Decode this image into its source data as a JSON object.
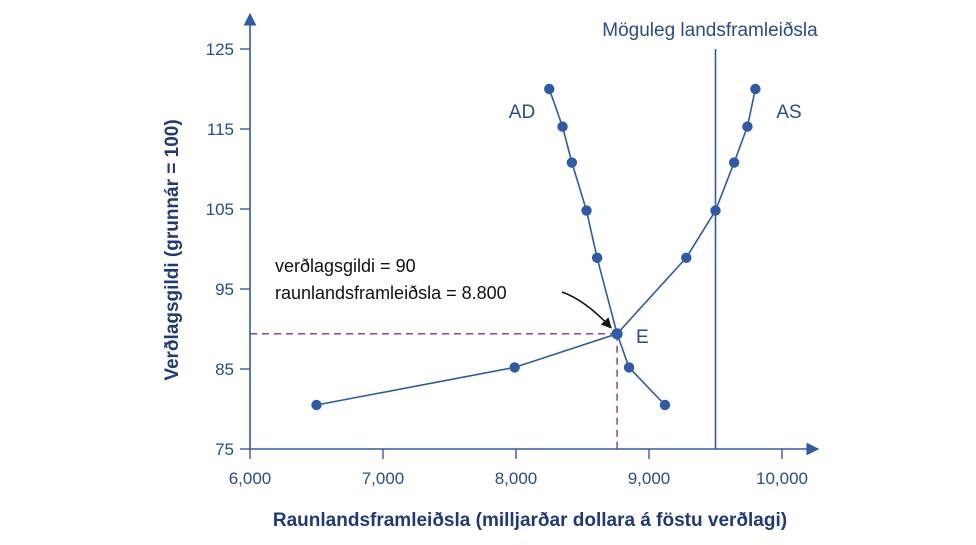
{
  "chart_data": {
    "type": "line",
    "xlabel": "Raunlandsframleiðsla (milljarðar dollara á föstu verðlagi)",
    "ylabel": "Verðlagsgildi (grunnár = 100)",
    "xlim": [
      6000,
      10300
    ],
    "ylim": [
      75,
      130
    ],
    "x_ticks": [
      6000,
      7000,
      8000,
      9000,
      10000
    ],
    "x_tick_labels": [
      "6,000",
      "7,000",
      "8,000",
      "9,000",
      "10,000"
    ],
    "y_ticks": [
      75,
      85,
      95,
      105,
      115,
      125
    ],
    "y_tick_labels": [
      "75",
      "85",
      "95",
      "105",
      "115",
      "125"
    ],
    "grid": false,
    "series": [
      {
        "name": "AD",
        "x": [
          8250,
          8350,
          8420,
          8530,
          8610,
          8760,
          8850,
          9120
        ],
        "y": [
          120,
          115.3,
          110.8,
          104.8,
          98.9,
          89.4,
          85.2,
          80.5
        ]
      },
      {
        "name": "AS",
        "x": [
          6500,
          7990,
          8760,
          9280,
          9500,
          9640,
          9740,
          9800
        ],
        "y": [
          80.5,
          85.2,
          89.4,
          98.9,
          104.8,
          110.8,
          115.3,
          120
        ]
      }
    ],
    "potential_gdp": {
      "x": 9500,
      "label": "Möguleg landsframleiðsla"
    },
    "equilibrium": {
      "x": 8760,
      "y": 89.4,
      "label": "E",
      "annotation": [
        "verðlagsgildi = 90",
        "raunlandsframleiðsla = 8.800"
      ]
    },
    "colors": {
      "line": "#2f5aa8",
      "axis": "#2f5aa8",
      "dashed": "#7a3a8a",
      "text": "#2b4a8f"
    }
  }
}
